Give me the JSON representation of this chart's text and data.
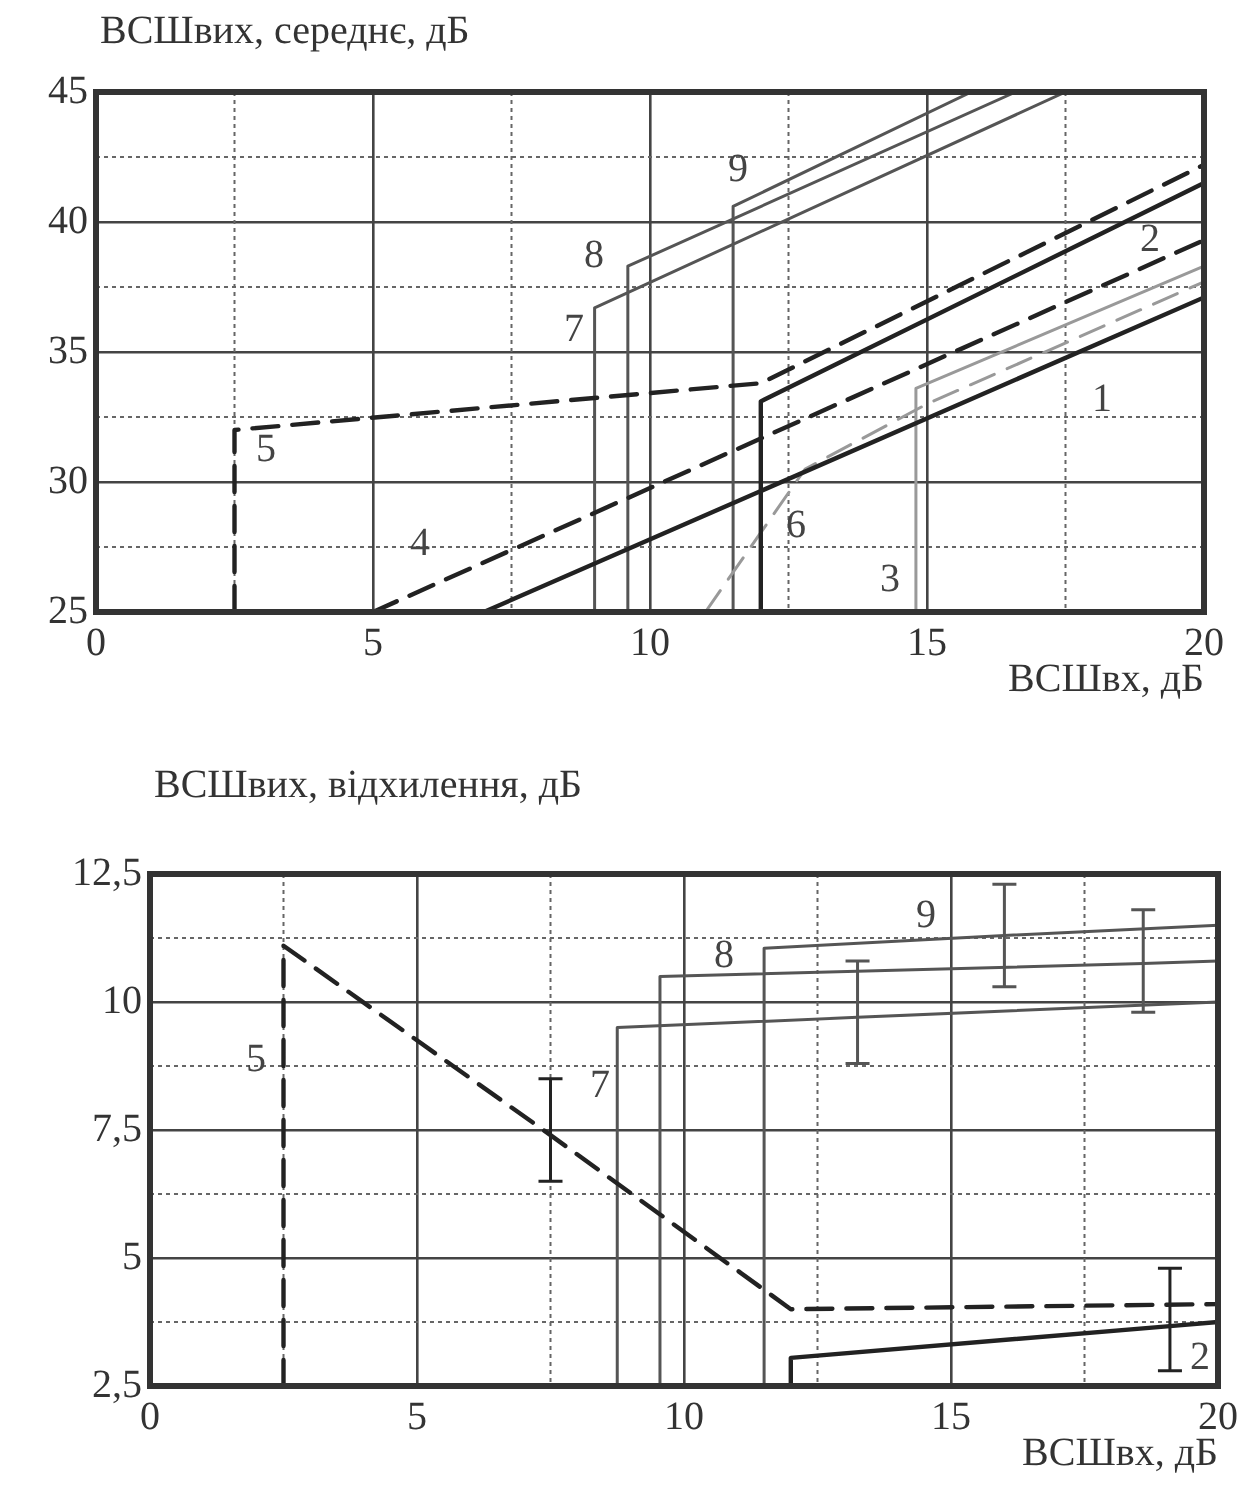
{
  "chart_data": [
    {
      "type": "line",
      "ylabel": "ВСШвих, середнє, дБ",
      "xlabel": "ВСШвх, дБ",
      "grid": true,
      "marker": "none",
      "xlim": [
        0,
        20
      ],
      "ylim": [
        25,
        45
      ],
      "xticks": [
        0,
        {
          "value": 2.5,
          "label": null
        },
        5,
        {
          "value": 7.5,
          "label": null
        },
        10,
        {
          "value": 12.5,
          "label": null
        },
        15,
        {
          "value": 17.5,
          "label": null
        },
        20
      ],
      "yticks": [
        25,
        {
          "value": 27.5,
          "label": null
        },
        30,
        {
          "value": 32.5,
          "label": null
        },
        35,
        {
          "value": 37.5,
          "label": null
        },
        40,
        {
          "value": 42.5,
          "label": null
        },
        45
      ],
      "series": [
        {
          "name": "1",
          "color": "#222222",
          "line_style": "solid",
          "x": [
            7,
            20
          ],
          "values": [
            25,
            37.1
          ]
        },
        {
          "name": "2",
          "color": "#222222",
          "line_style": "solid",
          "x": [
            12,
            12,
            20
          ],
          "values": [
            25,
            33.1,
            41.5
          ]
        },
        {
          "name": "3",
          "color": "#999999",
          "line_style": "solid",
          "x": [
            14.8,
            14.8,
            20
          ],
          "values": [
            25,
            33.6,
            38.3
          ]
        },
        {
          "name": "4",
          "color": "#222222",
          "line_style": "dashed",
          "x": [
            5,
            20
          ],
          "values": [
            25,
            39.3
          ]
        },
        {
          "name": "5",
          "color": "#222222",
          "line_style": "dashed",
          "x": [
            2.5,
            2.5,
            12,
            20
          ],
          "values": [
            25,
            32,
            33.8,
            42.2
          ]
        },
        {
          "name": "6",
          "color": "#999999",
          "line_style": "dashed",
          "x": [
            11,
            12.8,
            15,
            20
          ],
          "values": [
            25,
            30.5,
            33,
            37.7
          ]
        },
        {
          "name": "7",
          "color": "#555555",
          "line_style": "solid",
          "x": [
            9,
            9,
            17.5
          ],
          "values": [
            25,
            36.7,
            45
          ]
        },
        {
          "name": "8",
          "color": "#555555",
          "line_style": "solid",
          "x": [
            9.6,
            9.6,
            16.6
          ],
          "values": [
            25,
            38.3,
            45
          ]
        },
        {
          "name": "9",
          "color": "#555555",
          "line_style": "solid",
          "x": [
            11.5,
            11.5,
            15.8
          ],
          "values": [
            25,
            40.6,
            45
          ]
        }
      ]
    },
    {
      "type": "line",
      "ylabel": "ВСШвих, відхилення, дБ",
      "xlabel": "ВСШвх, дБ",
      "grid": true,
      "marker": "none",
      "xlim": [
        0,
        20
      ],
      "ylim": [
        2.5,
        12.5
      ],
      "xticks": [
        0,
        {
          "value": 2.5,
          "label": null
        },
        5,
        {
          "value": 7.5,
          "label": null
        },
        10,
        {
          "value": 12.5,
          "label": null
        },
        15,
        {
          "value": 17.5,
          "label": null
        },
        20
      ],
      "yticks": [
        {
          "value": 2.5,
          "label": "2,5"
        },
        {
          "value": 3.75,
          "label": null
        },
        5,
        {
          "value": 6.25,
          "label": null
        },
        {
          "value": 7.5,
          "label": "7,5"
        },
        {
          "value": 8.75,
          "label": null
        },
        10,
        {
          "value": 11.25,
          "label": null
        },
        {
          "value": 12.5,
          "label": "12,5"
        }
      ],
      "series": [
        {
          "name": "2",
          "color": "#222222",
          "line_style": "solid",
          "x": [
            12,
            12,
            19.1,
            20
          ],
          "values": [
            2.5,
            3.05,
            3.67,
            3.75
          ],
          "errors": [
            null,
            null,
            [
              2.8,
              4.8
            ],
            null
          ]
        },
        {
          "name": "5",
          "color": "#222222",
          "line_style": "dashed",
          "x": [
            2.5,
            2.5,
            7.5,
            12,
            20
          ],
          "values": [
            2.5,
            11.1,
            7.4,
            4,
            4.1
          ],
          "errors": [
            null,
            null,
            [
              6.5,
              8.5
            ],
            null,
            null
          ]
        },
        {
          "name": "7",
          "color": "#555555",
          "line_style": "solid",
          "x": [
            8.75,
            8.75,
            13.25,
            20
          ],
          "values": [
            2.5,
            9.5,
            9.7,
            10
          ],
          "errors": [
            null,
            null,
            [
              8.8,
              10.8
            ],
            null
          ]
        },
        {
          "name": "8",
          "color": "#555555",
          "line_style": "solid",
          "x": [
            9.55,
            9.55,
            18.6,
            20
          ],
          "values": [
            2.5,
            10.5,
            10.75,
            10.8
          ],
          "errors": [
            null,
            null,
            [
              9.8,
              11.8
            ],
            null
          ]
        },
        {
          "name": "9",
          "color": "#555555",
          "line_style": "solid",
          "x": [
            11.5,
            11.5,
            16,
            20
          ],
          "values": [
            2.5,
            11.05,
            11.3,
            11.5
          ],
          "errors": [
            null,
            null,
            [
              10.3,
              12.3
            ],
            null
          ]
        }
      ]
    }
  ]
}
